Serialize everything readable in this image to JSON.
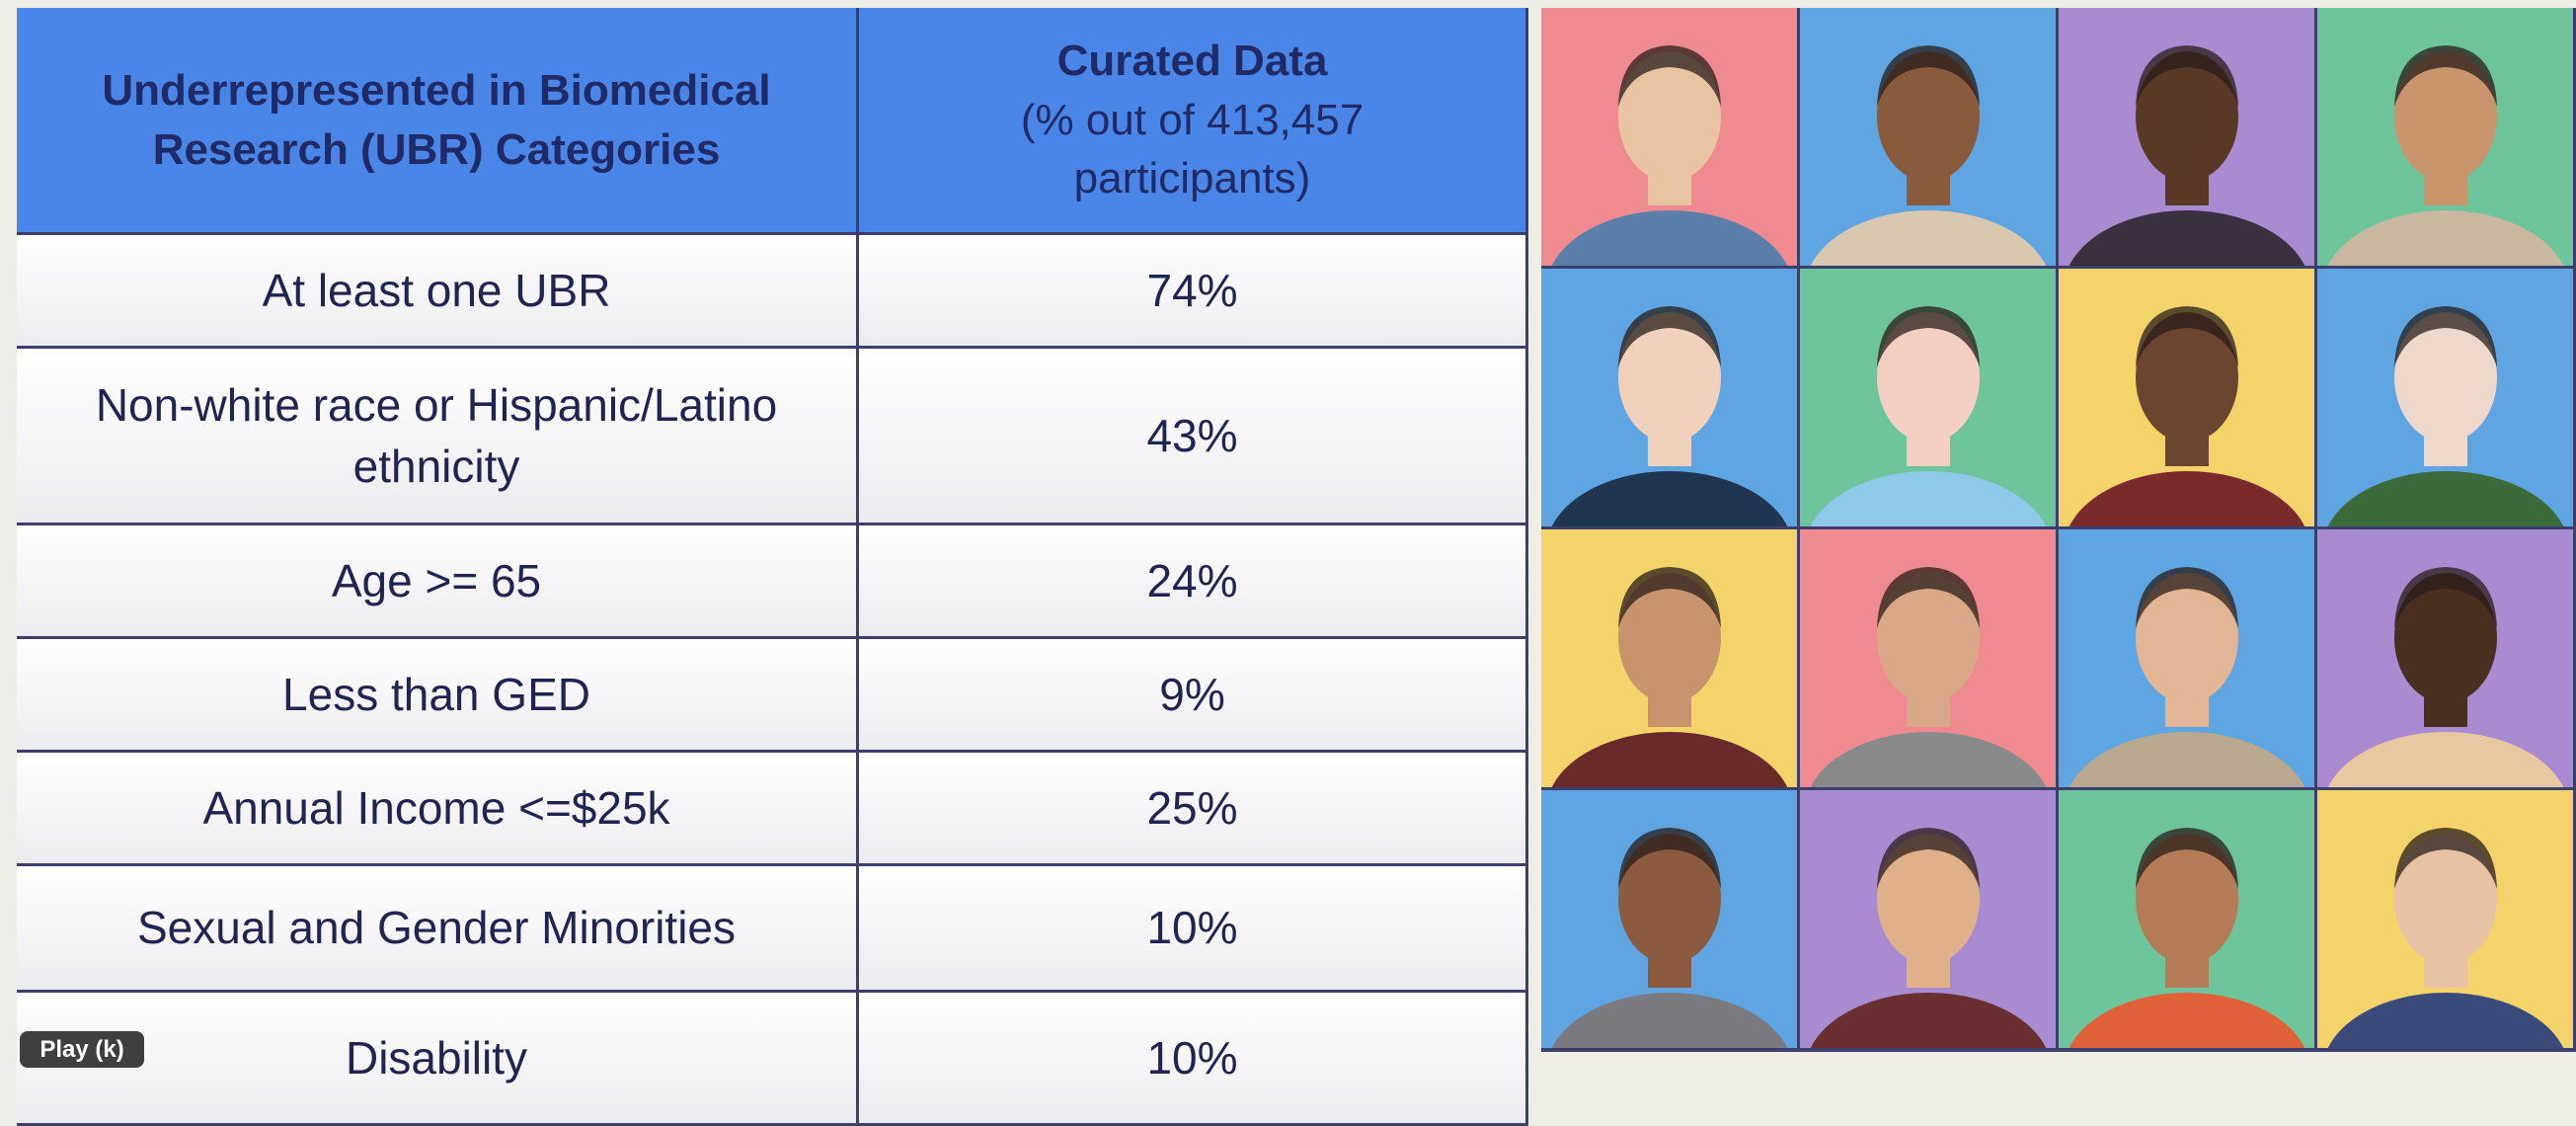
{
  "table": {
    "header": [
      "Underrepresented in Biomedical Research (UBR) Categories",
      {
        "title": "Curated Data",
        "subtitle": "(% out of 413,457 participants)"
      }
    ],
    "rows": [
      [
        "At least one UBR",
        "74%"
      ],
      [
        "Non-white race or Hispanic/Latino ethnicity",
        "43%"
      ],
      [
        "Age >= 65",
        "24%"
      ],
      [
        "Less than GED",
        "9%"
      ],
      [
        "Annual Income <=$25k",
        "25%"
      ],
      [
        "Sexual and Gender Minorities",
        "10%"
      ],
      [
        "Disability",
        "10%"
      ]
    ]
  },
  "player": {
    "tooltip": "Play (k)"
  }
}
